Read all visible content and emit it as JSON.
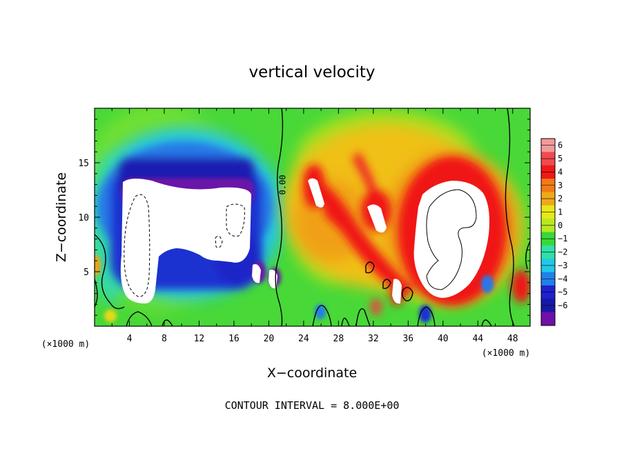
{
  "chart_data": {
    "type": "heatmap",
    "title": "vertical velocity",
    "xlabel": "X−coordinate",
    "ylabel": "Z−coordinate",
    "x_unit": "(×1000 m)",
    "z_unit": "(×1000 m)",
    "xlim": [
      0,
      50
    ],
    "ylim": [
      0,
      20
    ],
    "x_ticks": [
      4,
      8,
      12,
      16,
      20,
      24,
      28,
      32,
      36,
      40,
      44,
      48
    ],
    "x_tick_labels": [
      "4",
      "8",
      "12",
      "16",
      "20",
      "24",
      "28",
      "32",
      "36",
      "40",
      "44",
      "48"
    ],
    "y_ticks": [
      5,
      10,
      15
    ],
    "y_tick_labels": [
      "5",
      "10",
      "15"
    ],
    "contour_label": "0.00",
    "footer": "CONTOUR INTERVAL = 8.000E+00",
    "colorbar": {
      "levels": [
        6,
        5,
        4,
        3,
        2,
        1,
        0,
        -1,
        -2,
        -3,
        -4,
        -5,
        -6
      ],
      "labels": [
        "6",
        "5",
        "4",
        "3",
        "2",
        "1",
        "0",
        "−1",
        "−2",
        "−3",
        "−4",
        "−5",
        "−6"
      ],
      "colors": [
        "#f29a9a",
        "#f04a50",
        "#f01818",
        "#f07a18",
        "#f0a818",
        "#e8e818",
        "#b8e820",
        "#38d838",
        "#30e0a8",
        "#20c8e8",
        "#2080e8",
        "#2020d0",
        "#1818a8",
        "#7010a8"
      ]
    },
    "features": [
      {
        "name": "downdraft-core",
        "x_range": [
          3,
          18.5
        ],
        "z_range": [
          2.5,
          13.5
        ],
        "approx_value": "< -6"
      },
      {
        "name": "updraft-core",
        "x_range": [
          37,
          44
        ],
        "z_range": [
          3.5,
          12.5
        ],
        "approx_value": "> 6"
      },
      {
        "name": "updraft-upper-left",
        "x_range": [
          24.5,
          26
        ],
        "z_range": [
          11,
          13
        ],
        "approx_value": "> 6"
      }
    ]
  }
}
